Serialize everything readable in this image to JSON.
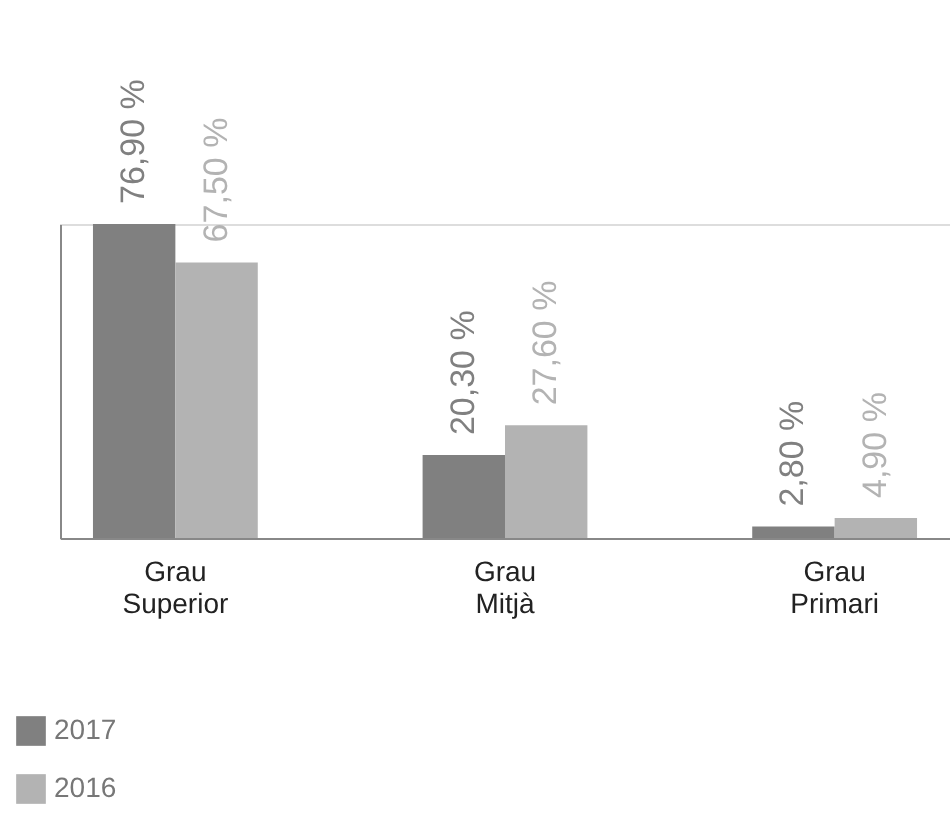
{
  "chart_data": {
    "type": "bar",
    "categories": [
      "Grau Superior",
      "Grau Mitjà",
      "Grau Primari"
    ],
    "series": [
      {
        "name": "2017",
        "color": "#808080",
        "values": [
          76.9,
          20.3,
          2.8
        ],
        "value_labels": [
          "76,90 %",
          "20,30 %",
          "2,80 %"
        ]
      },
      {
        "name": "2016",
        "color": "#b3b3b3",
        "values": [
          67.5,
          27.6,
          4.9
        ],
        "value_labels": [
          "67,50 %",
          "27,60 %",
          "4,90 %"
        ]
      }
    ],
    "legend": "bottom left",
    "grid": false
  }
}
